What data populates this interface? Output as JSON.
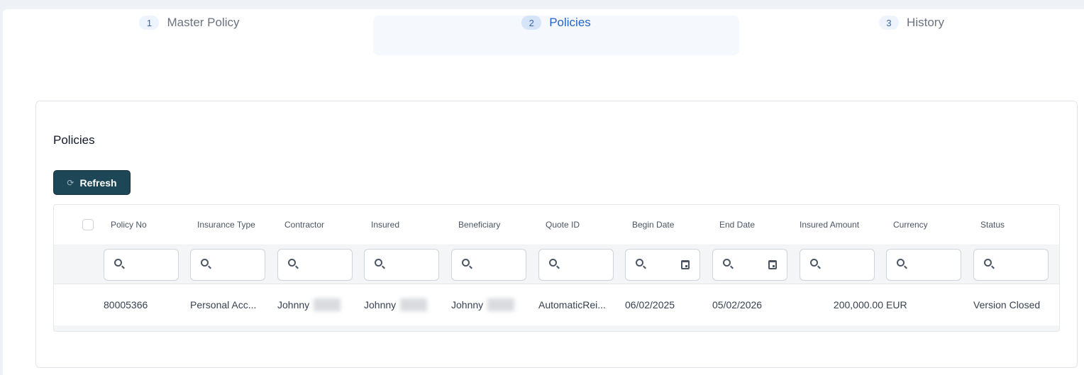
{
  "steps": [
    {
      "num": "1",
      "label": "Master Policy",
      "active": false
    },
    {
      "num": "2",
      "label": "Policies",
      "active": true
    },
    {
      "num": "3",
      "label": "History",
      "active": false
    }
  ],
  "card": {
    "title": "Policies",
    "refresh_label": "Refresh",
    "refresh_icon": "refresh-icon"
  },
  "table": {
    "columns": [
      "Policy No",
      "Insurance Type",
      "Contractor",
      "Insured",
      "Beneficiary",
      "Quote ID",
      "Begin Date",
      "End Date",
      "Insured Amount",
      "Currency",
      "Status"
    ],
    "filter_icons": [
      "search-icon",
      "search-icon",
      "search-icon",
      "search-icon",
      "search-icon",
      "search-icon",
      "search-icon calendar-icon",
      "search-icon calendar-icon",
      "search-icon",
      "search-icon",
      "search-icon"
    ],
    "rows": [
      {
        "policy_no": "80005366",
        "insurance_type": "Personal Acc...",
        "contractor": "Johnny",
        "insured": "Johnny",
        "beneficiary": "Johnny",
        "quote_id": "AutomaticRei...",
        "begin_date": "06/02/2025",
        "end_date": "05/02/2026",
        "insured_amount": "200,000.00",
        "currency": "EUR",
        "status": "Version Closed"
      }
    ]
  }
}
